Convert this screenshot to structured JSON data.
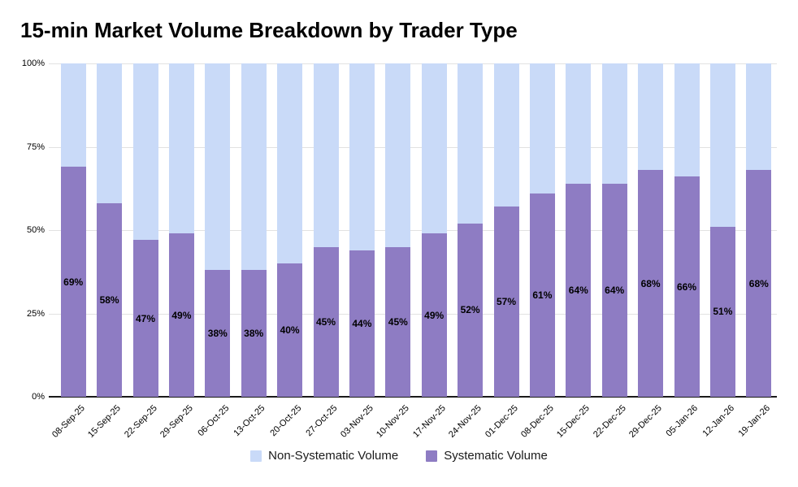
{
  "title": "15-min Market Volume Breakdown by Trader Type",
  "colors": {
    "non_systematic": "#c9daf8",
    "systematic": "#8e7cc3",
    "gridline": "#e2e2e2",
    "axis": "#1a1a1a",
    "text": "#000000"
  },
  "chart_data": {
    "type": "bar",
    "stacked": true,
    "normalized_percent": true,
    "title": "15-min Market Volume Breakdown by Trader Type",
    "xlabel": "",
    "ylabel": "",
    "ylim": [
      0,
      100
    ],
    "y_ticks": [
      "0%",
      "25%",
      "50%",
      "75%",
      "100%"
    ],
    "y_tick_values": [
      0,
      25,
      50,
      75,
      100
    ],
    "grid": true,
    "legend_position": "bottom",
    "categories": [
      "08-Sep-25",
      "15-Sep-25",
      "22-Sep-25",
      "29-Sep-25",
      "06-Oct-25",
      "13-Oct-25",
      "20-Oct-25",
      "27-Oct-25",
      "03-Nov-25",
      "10-Nov-25",
      "17-Nov-25",
      "24-Nov-25",
      "01-Dec-25",
      "08-Dec-25",
      "15-Dec-25",
      "22-Dec-25",
      "29-Dec-25",
      "05-Jan-26",
      "12-Jan-26",
      "19-Jan-26"
    ],
    "series": [
      {
        "name": "Non-Systematic Volume",
        "color": "#c9daf8",
        "data_labels": false,
        "values": [
          31,
          42,
          53,
          51,
          62,
          62,
          60,
          55,
          56,
          55,
          51,
          48,
          43,
          39,
          36,
          36,
          32,
          34,
          49,
          32
        ]
      },
      {
        "name": "Systematic Volume",
        "color": "#8e7cc3",
        "data_labels": true,
        "label_suffix": "%",
        "values": [
          69,
          58,
          47,
          49,
          38,
          38,
          40,
          45,
          44,
          45,
          49,
          52,
          57,
          61,
          64,
          64,
          68,
          66,
          51,
          68
        ]
      }
    ]
  }
}
